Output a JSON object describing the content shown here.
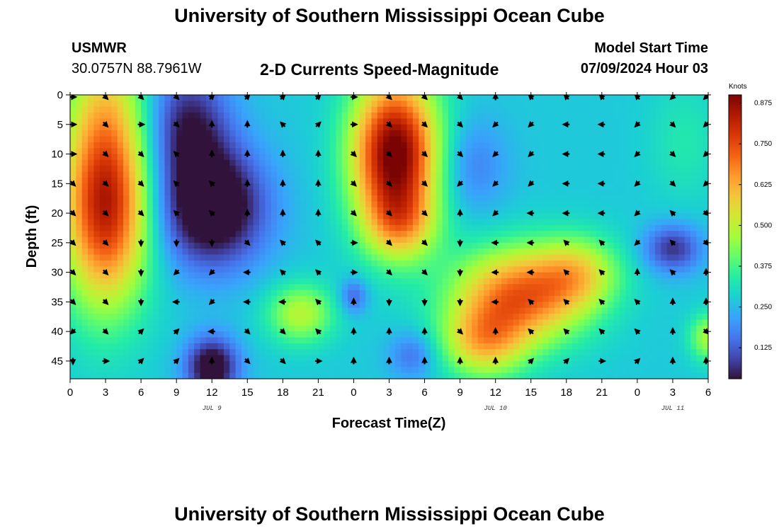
{
  "header": {
    "title": "University of Southern Mississippi Ocean Cube",
    "station": "USMWR",
    "coords": "30.0757N  88.7961W",
    "subtitle": "2-D Currents Speed-Magnitude",
    "model_start_label": "Model Start Time",
    "model_start_value": "07/09/2024 Hour 03"
  },
  "footer": {
    "title": "University of Southern Mississippi Ocean Cube"
  },
  "colors": {
    "ramp": [
      "#30123b",
      "#4145ab",
      "#4675ed",
      "#39a2fc",
      "#1bcfd4",
      "#24eca6",
      "#61fc6c",
      "#a4fc3b",
      "#d1e834",
      "#f3c63a",
      "#fe9b2d",
      "#f36315",
      "#d93806",
      "#b11901",
      "#7a0403"
    ]
  },
  "chart_data": {
    "type": "heatmap",
    "title": "2-D Currents Speed-Magnitude",
    "xlabel": "Forecast Time(Z)",
    "ylabel": "Depth (ft)",
    "x_tick_labels": [
      "0",
      "3",
      "6",
      "9",
      "12",
      "15",
      "18",
      "21",
      "0",
      "3",
      "6",
      "9",
      "12",
      "15",
      "18",
      "21",
      "0",
      "3",
      "6"
    ],
    "x_tick_hours": [
      0,
      3,
      6,
      9,
      12,
      15,
      18,
      21,
      24,
      27,
      30,
      33,
      36,
      39,
      42,
      45,
      48,
      51,
      54
    ],
    "xlim": [
      0,
      54
    ],
    "y_tick_labels": [
      "0",
      "5",
      "10",
      "15",
      "20",
      "25",
      "30",
      "35",
      "40",
      "45"
    ],
    "y_tick_values": [
      0,
      5,
      10,
      15,
      20,
      25,
      30,
      35,
      40,
      45
    ],
    "ylim": [
      0,
      48
    ],
    "date_labels": [
      {
        "text": "JUL 9",
        "hour": 12
      },
      {
        "text": "JUL 10",
        "hour": 36
      },
      {
        "text": "JUL 11",
        "hour": 51
      }
    ],
    "colorbar": {
      "title": "Knots",
      "ticks": [
        "0.125",
        "0.250",
        "0.375",
        "0.500",
        "0.625",
        "0.750",
        "0.875"
      ],
      "tick_values": [
        0.125,
        0.25,
        0.375,
        0.5,
        0.625,
        0.75,
        0.875
      ],
      "range": [
        0.03,
        0.9
      ]
    },
    "speed_blobs": [
      {
        "hour": 3,
        "depth": 18,
        "rx": 3.6,
        "ry": 17,
        "amp": 0.58
      },
      {
        "hour": 3,
        "depth": 0,
        "rx": 3.2,
        "ry": 9,
        "amp": 0.12
      },
      {
        "hour": 12,
        "depth": 19,
        "rx": 4.5,
        "ry": 10,
        "amp": -0.34
      },
      {
        "hour": 10,
        "depth": 5,
        "rx": 3.5,
        "ry": 10,
        "amp": -0.22
      },
      {
        "hour": 12,
        "depth": 46,
        "rx": 2.2,
        "ry": 5,
        "amp": -0.3
      },
      {
        "hour": 19.5,
        "depth": 37,
        "rx": 2.8,
        "ry": 5,
        "amp": 0.22
      },
      {
        "hour": 24,
        "depth": 34,
        "rx": 1.2,
        "ry": 3,
        "amp": -0.14
      },
      {
        "hour": 27.5,
        "depth": 10,
        "rx": 3.6,
        "ry": 13,
        "amp": 0.66
      },
      {
        "hour": 28,
        "depth": 22,
        "rx": 3.0,
        "ry": 6,
        "amp": 0.2
      },
      {
        "hour": 38,
        "depth": 34,
        "rx": 5.5,
        "ry": 8,
        "amp": 0.44
      },
      {
        "hour": 35,
        "depth": 42,
        "rx": 3.5,
        "ry": 6,
        "amp": 0.28
      },
      {
        "hour": 43,
        "depth": 30,
        "rx": 3.5,
        "ry": 6,
        "amp": 0.22
      },
      {
        "hour": 34,
        "depth": 12,
        "rx": 3.0,
        "ry": 8,
        "amp": -0.1
      },
      {
        "hour": 51,
        "depth": 26,
        "rx": 2.4,
        "ry": 4,
        "amp": -0.2
      },
      {
        "hour": 52,
        "depth": 8,
        "rx": 3.0,
        "ry": 10,
        "amp": 0.06
      },
      {
        "hour": 54,
        "depth": 41,
        "rx": 1.6,
        "ry": 4,
        "amp": 0.2
      },
      {
        "hour": 29,
        "depth": 44,
        "rx": 2.0,
        "ry": 4,
        "amp": -0.12
      }
    ],
    "base_speed": 0.27,
    "vector_hours": [
      0,
      3,
      6,
      9,
      12,
      15,
      18,
      21,
      24,
      27,
      30,
      33,
      36,
      39,
      42,
      45,
      48,
      51,
      54
    ],
    "vector_depths": [
      0,
      5,
      10,
      15,
      20,
      25,
      30,
      35,
      40,
      45
    ],
    "vector_directions_deg": [
      [
        90,
        135,
        135,
        135,
        45,
        45,
        45,
        45,
        90,
        135,
        135,
        135,
        0,
        315,
        315,
        315,
        315,
        225,
        225
      ],
      [
        90,
        135,
        90,
        135,
        0,
        0,
        315,
        45,
        90,
        135,
        135,
        135,
        225,
        225,
        270,
        270,
        225,
        135,
        225
      ],
      [
        90,
        135,
        135,
        315,
        0,
        0,
        0,
        0,
        135,
        135,
        135,
        135,
        225,
        225,
        270,
        270,
        225,
        135,
        225
      ],
      [
        135,
        135,
        135,
        315,
        315,
        0,
        0,
        0,
        135,
        135,
        135,
        225,
        225,
        225,
        270,
        270,
        225,
        135,
        225
      ],
      [
        135,
        135,
        135,
        315,
        315,
        0,
        0,
        0,
        135,
        135,
        135,
        0,
        225,
        270,
        270,
        270,
        225,
        315,
        135
      ],
      [
        135,
        135,
        180,
        180,
        180,
        135,
        315,
        315,
        90,
        135,
        135,
        180,
        270,
        270,
        315,
        315,
        225,
        315,
        135
      ],
      [
        135,
        135,
        180,
        225,
        225,
        270,
        315,
        315,
        90,
        135,
        135,
        180,
        270,
        270,
        315,
        315,
        0,
        315,
        0
      ],
      [
        135,
        135,
        180,
        270,
        225,
        270,
        270,
        315,
        0,
        180,
        180,
        180,
        270,
        315,
        315,
        315,
        315,
        0,
        0
      ],
      [
        225,
        135,
        45,
        45,
        270,
        135,
        135,
        315,
        0,
        0,
        0,
        135,
        0,
        315,
        315,
        315,
        315,
        0,
        135
      ],
      [
        180,
        90,
        45,
        45,
        0,
        135,
        135,
        90,
        0,
        0,
        0,
        0,
        0,
        45,
        45,
        90,
        45,
        0,
        0
      ]
    ]
  }
}
